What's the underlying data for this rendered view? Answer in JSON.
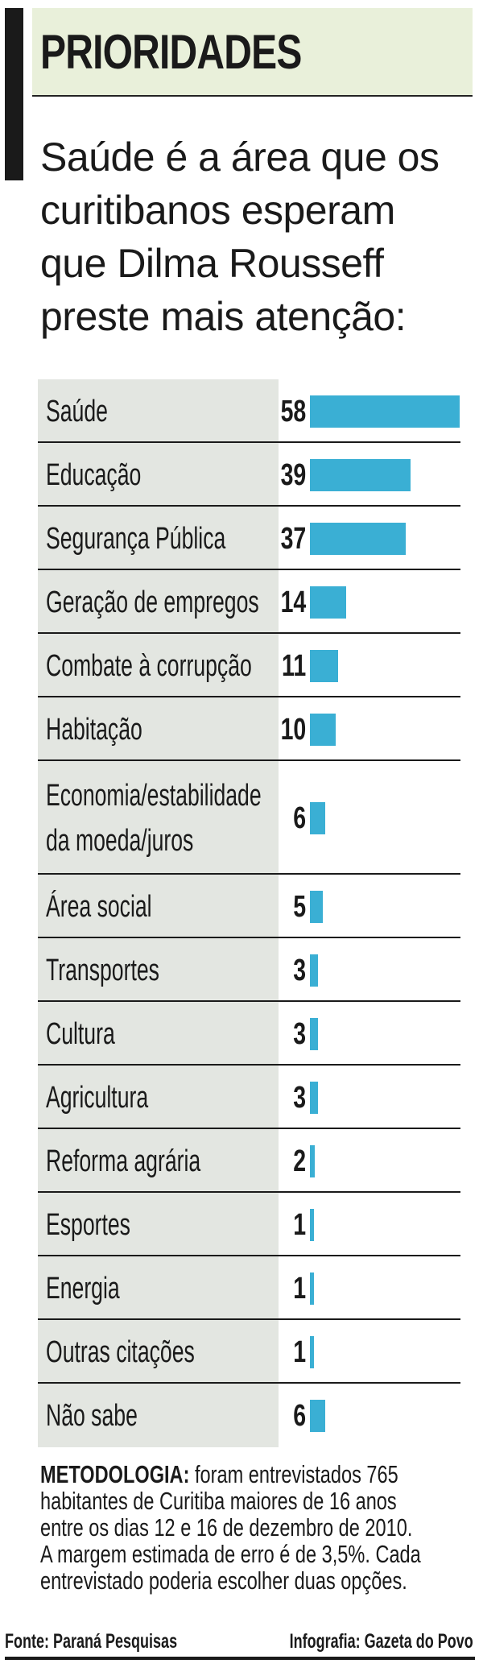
{
  "header": {
    "title": "PRIORIDADES"
  },
  "subtitle_lines": [
    "Saúde é a área que os",
    "curitibanos esperam",
    "que Dilma Rousseff",
    "preste mais atenção:"
  ],
  "colors": {
    "bar": "#3aafd4",
    "header_bg": "#e9f0da",
    "label_bg": "#e3e6e1"
  },
  "chart_data": {
    "type": "bar",
    "orientation": "horizontal",
    "categories": [
      "Saúde",
      "Educação",
      "Segurança Pública",
      "Geração de empregos",
      "Combate à corrupção",
      "Habitação",
      "Economia/estabilidade da moeda/juros",
      "Área social",
      "Transportes",
      "Cultura",
      "Agricultura",
      "Reforma agrária",
      "Esportes",
      "Energia",
      "Outras citações",
      "Não sabe"
    ],
    "category_lines": [
      [
        "Saúde"
      ],
      [
        "Educação"
      ],
      [
        "Segurança Pública"
      ],
      [
        "Geração de empregos"
      ],
      [
        "Combate à corrupção"
      ],
      [
        "Habitação"
      ],
      [
        "Economia/estabilidade",
        "da moeda/juros"
      ],
      [
        "Área social"
      ],
      [
        "Transportes"
      ],
      [
        "Cultura"
      ],
      [
        "Agricultura"
      ],
      [
        "Reforma agrária"
      ],
      [
        "Esportes"
      ],
      [
        "Energia"
      ],
      [
        "Outras citações"
      ],
      [
        "Não sabe"
      ]
    ],
    "values": [
      58,
      39,
      37,
      14,
      11,
      10,
      6,
      5,
      3,
      3,
      3,
      2,
      1,
      1,
      1,
      6
    ],
    "data_labels": true,
    "grid": false
  },
  "methodology": {
    "label": "METODOLOGIA:",
    "lines": [
      "foram entrevistados 765",
      "habitantes de Curitiba maiores de 16 anos",
      "entre os dias 12 e 16 de dezembro de 2010.",
      "A margem estimada de erro é de 3,5%. Cada",
      "entrevistado poderia escolher duas opções."
    ]
  },
  "footer": {
    "source": "Fonte: Paraná Pesquisas",
    "credit": "Infografia: Gazeta do Povo"
  }
}
